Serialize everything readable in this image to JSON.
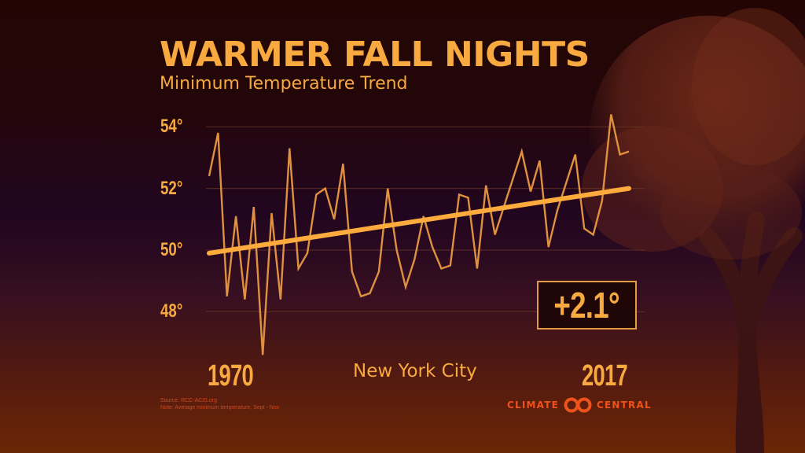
{
  "header": {
    "title": "WARMER FALL NIGHTS",
    "subtitle": "Minimum Temperature Trend"
  },
  "location": "New York City",
  "change_label": "+2.1°",
  "notes": {
    "source": "Source: RCC-ACIS.org",
    "note": "Note: Average minimum temperature, Sept - Nov"
  },
  "logo": {
    "left": "CLIMATE",
    "right": "CENTRAL",
    "icon": "linked-circles-icon"
  },
  "colors": {
    "accent": "#f8a93f",
    "line": "#e0913f",
    "trend": "#fdab3c",
    "grid": "#6b3526",
    "brand": "#f0521c",
    "box_fill": "#1f0708"
  },
  "chart_data": {
    "type": "line",
    "title": "WARMER FALL NIGHTS",
    "subtitle": "Minimum Temperature Trend",
    "xlabel": "New York City",
    "ylabel": "",
    "x_start_label": "1970",
    "x_end_label": "2017",
    "x": [
      1970,
      1971,
      1972,
      1973,
      1974,
      1975,
      1976,
      1977,
      1978,
      1979,
      1980,
      1981,
      1982,
      1983,
      1984,
      1985,
      1986,
      1987,
      1988,
      1989,
      1990,
      1991,
      1992,
      1993,
      1994,
      1995,
      1996,
      1997,
      1998,
      1999,
      2000,
      2001,
      2002,
      2003,
      2004,
      2005,
      2006,
      2007,
      2008,
      2009,
      2010,
      2011,
      2012,
      2013,
      2014,
      2015,
      2016,
      2017
    ],
    "series": [
      {
        "name": "Average minimum temperature (Sept-Nov)",
        "values": [
          52.4,
          53.8,
          48.5,
          51.1,
          48.4,
          51.4,
          46.6,
          51.2,
          48.4,
          53.3,
          49.4,
          49.9,
          51.8,
          52.0,
          51.0,
          52.8,
          49.3,
          48.5,
          48.6,
          49.3,
          52.0,
          50.0,
          48.8,
          49.7,
          51.1,
          50.1,
          49.4,
          49.5,
          51.8,
          51.7,
          49.4,
          52.1,
          50.5,
          51.4,
          52.3,
          53.2,
          51.9,
          52.9,
          50.1,
          51.3,
          52.2,
          53.1,
          50.7,
          50.5,
          51.6,
          54.4,
          53.1,
          53.2
        ]
      },
      {
        "name": "Trend",
        "values_endpoints": [
          49.9,
          52.0
        ]
      }
    ],
    "annotation": "+2.1°",
    "yticks": [
      48,
      50,
      52,
      54
    ],
    "ytick_labels": [
      "48°",
      "50°",
      "52°",
      "54°"
    ],
    "ylim": [
      46.5,
      54.6
    ],
    "grid": true,
    "legend": null
  }
}
